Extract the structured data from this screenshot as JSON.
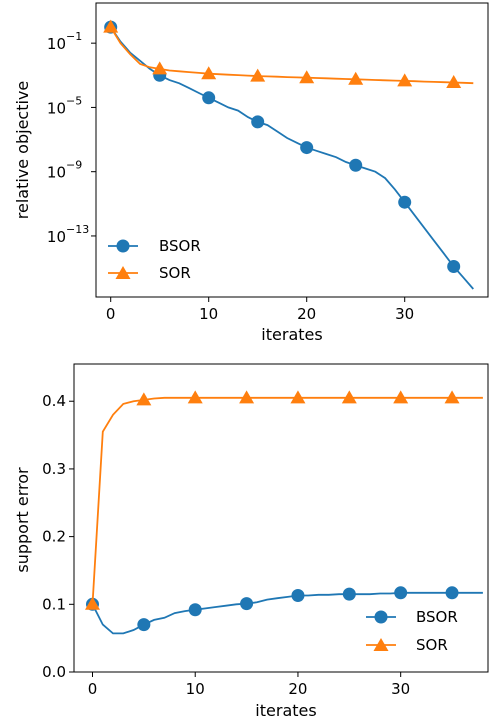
{
  "colors": {
    "bsor": "#1f77b4",
    "sor": "#ff7f0e"
  },
  "chart_data": [
    {
      "type": "line",
      "xlabel": "iterates",
      "ylabel": "relative objective",
      "yscale": "log",
      "xlim": [
        -1.5,
        38.5
      ],
      "ylim_log10": [
        -16.8,
        1.5
      ],
      "xticks": [
        0,
        10,
        20,
        30
      ],
      "xtick_labels": [
        "0",
        "10",
        "20",
        "30"
      ],
      "yticks_log10": [
        -1,
        -5,
        -9,
        -13
      ],
      "ytick_labels": [
        "10",
        "10",
        "10",
        "10"
      ],
      "ytick_exponents": [
        "−1",
        "−5",
        "−9",
        "−13"
      ],
      "legend_position": "lower-left",
      "series": [
        {
          "name": "BSOR",
          "marker": "circle",
          "color": "#1f77b4",
          "x": [
            0,
            1,
            2,
            3,
            4,
            5,
            6,
            7,
            8,
            9,
            10,
            11,
            12,
            13,
            14,
            15,
            16,
            17,
            18,
            19,
            20,
            21,
            22,
            23,
            24,
            25,
            26,
            27,
            28,
            29,
            30,
            31,
            32,
            33,
            34,
            35,
            36,
            37
          ],
          "log10_y": [
            0.0,
            -0.9,
            -1.6,
            -2.1,
            -2.6,
            -3.0,
            -3.3,
            -3.5,
            -3.8,
            -4.1,
            -4.4,
            -4.7,
            -5.0,
            -5.2,
            -5.6,
            -5.9,
            -6.1,
            -6.5,
            -6.9,
            -7.2,
            -7.5,
            -7.7,
            -7.9,
            -8.1,
            -8.4,
            -8.6,
            -8.8,
            -9.0,
            -9.4,
            -10.1,
            -10.9,
            -11.7,
            -12.5,
            -13.3,
            -14.1,
            -14.9,
            -15.6,
            -16.3
          ],
          "marker_x": [
            0,
            5,
            10,
            15,
            20,
            25,
            30,
            35
          ]
        },
        {
          "name": "SOR",
          "marker": "triangle",
          "color": "#ff7f0e",
          "x": [
            0,
            1,
            2,
            3,
            4,
            5,
            6,
            7,
            8,
            9,
            10,
            11,
            12,
            13,
            14,
            15,
            16,
            17,
            18,
            19,
            20,
            21,
            22,
            23,
            24,
            25,
            26,
            27,
            28,
            29,
            30,
            31,
            32,
            33,
            34,
            35,
            36,
            37
          ],
          "log10_y": [
            0.0,
            -1.0,
            -1.7,
            -2.3,
            -2.5,
            -2.6,
            -2.7,
            -2.75,
            -2.8,
            -2.85,
            -2.9,
            -2.93,
            -2.96,
            -2.99,
            -3.02,
            -3.05,
            -3.07,
            -3.09,
            -3.11,
            -3.13,
            -3.15,
            -3.17,
            -3.19,
            -3.21,
            -3.23,
            -3.25,
            -3.27,
            -3.29,
            -3.31,
            -3.33,
            -3.35,
            -3.37,
            -3.39,
            -3.41,
            -3.43,
            -3.45,
            -3.47,
            -3.49
          ],
          "marker_x": [
            0,
            5,
            10,
            15,
            20,
            25,
            30,
            35
          ]
        }
      ]
    },
    {
      "type": "line",
      "xlabel": "iterates",
      "ylabel": "support error",
      "xlim": [
        -1.8,
        38.5
      ],
      "ylim": [
        0.0,
        0.455
      ],
      "xticks": [
        0,
        10,
        20,
        30
      ],
      "xtick_labels": [
        "0",
        "10",
        "20",
        "30"
      ],
      "yticks": [
        0.0,
        0.1,
        0.2,
        0.3,
        0.4
      ],
      "ytick_labels": [
        "0.0",
        "0.1",
        "0.2",
        "0.3",
        "0.4"
      ],
      "legend_position": "lower-right",
      "series": [
        {
          "name": "BSOR",
          "marker": "circle",
          "color": "#1f77b4",
          "x": [
            0,
            1,
            2,
            3,
            4,
            5,
            6,
            7,
            8,
            9,
            10,
            11,
            12,
            13,
            14,
            15,
            16,
            17,
            18,
            19,
            20,
            21,
            22,
            23,
            24,
            25,
            26,
            27,
            28,
            29,
            30,
            31,
            32,
            33,
            34,
            35,
            36,
            37,
            38
          ],
          "y": [
            0.1,
            0.07,
            0.057,
            0.057,
            0.062,
            0.07,
            0.077,
            0.08,
            0.087,
            0.09,
            0.092,
            0.094,
            0.096,
            0.098,
            0.1,
            0.101,
            0.103,
            0.107,
            0.109,
            0.111,
            0.113,
            0.113,
            0.114,
            0.114,
            0.115,
            0.115,
            0.115,
            0.115,
            0.116,
            0.116,
            0.117,
            0.117,
            0.117,
            0.117,
            0.117,
            0.117,
            0.117,
            0.117,
            0.117
          ],
          "marker_x": [
            0,
            5,
            10,
            15,
            20,
            25,
            30,
            35
          ]
        },
        {
          "name": "SOR",
          "marker": "triangle",
          "color": "#ff7f0e",
          "x": [
            0,
            1,
            2,
            3,
            4,
            5,
            6,
            7,
            8,
            9,
            10,
            11,
            12,
            13,
            14,
            15,
            16,
            17,
            18,
            19,
            20,
            21,
            22,
            23,
            24,
            25,
            26,
            27,
            28,
            29,
            30,
            31,
            32,
            33,
            34,
            35,
            36,
            37,
            38
          ],
          "y": [
            0.1,
            0.355,
            0.38,
            0.396,
            0.4,
            0.402,
            0.404,
            0.405,
            0.405,
            0.405,
            0.405,
            0.405,
            0.405,
            0.405,
            0.405,
            0.405,
            0.405,
            0.405,
            0.405,
            0.405,
            0.405,
            0.405,
            0.405,
            0.405,
            0.405,
            0.405,
            0.405,
            0.405,
            0.405,
            0.405,
            0.405,
            0.405,
            0.405,
            0.405,
            0.405,
            0.405,
            0.405,
            0.405,
            0.405
          ],
          "marker_x": [
            0,
            5,
            10,
            15,
            20,
            25,
            30,
            35
          ]
        }
      ]
    }
  ]
}
